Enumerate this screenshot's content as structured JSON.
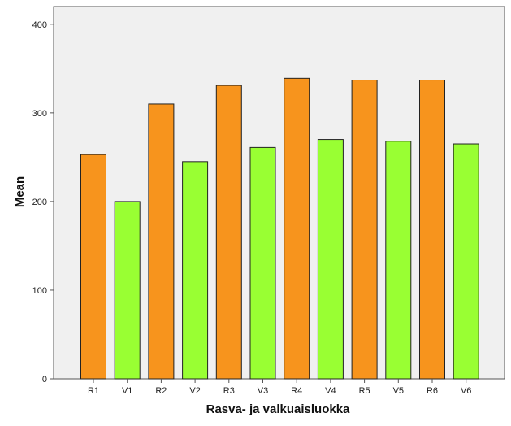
{
  "chart_data": {
    "type": "bar",
    "title": "",
    "xlabel": "Rasva- ja valkuaisluokka",
    "ylabel": "Mean",
    "categories": [
      "R1",
      "V1",
      "R2",
      "V2",
      "R3",
      "V3",
      "R4",
      "V4",
      "R5",
      "V5",
      "R6",
      "V6"
    ],
    "values": [
      253,
      200,
      310,
      245,
      331,
      261,
      339,
      270,
      337,
      268,
      337,
      265
    ],
    "ylim": [
      0,
      420
    ],
    "yticks": [
      0,
      100,
      200,
      300,
      400
    ],
    "grid": false,
    "legend": "none",
    "bar_colors": [
      "#f7941d",
      "#99ff33",
      "#f7941d",
      "#99ff33",
      "#f7941d",
      "#99ff33",
      "#f7941d",
      "#99ff33",
      "#f7941d",
      "#99ff33",
      "#f7941d",
      "#99ff33"
    ],
    "plot_background": "#f0f0f0",
    "bar_outline": "#222222"
  }
}
